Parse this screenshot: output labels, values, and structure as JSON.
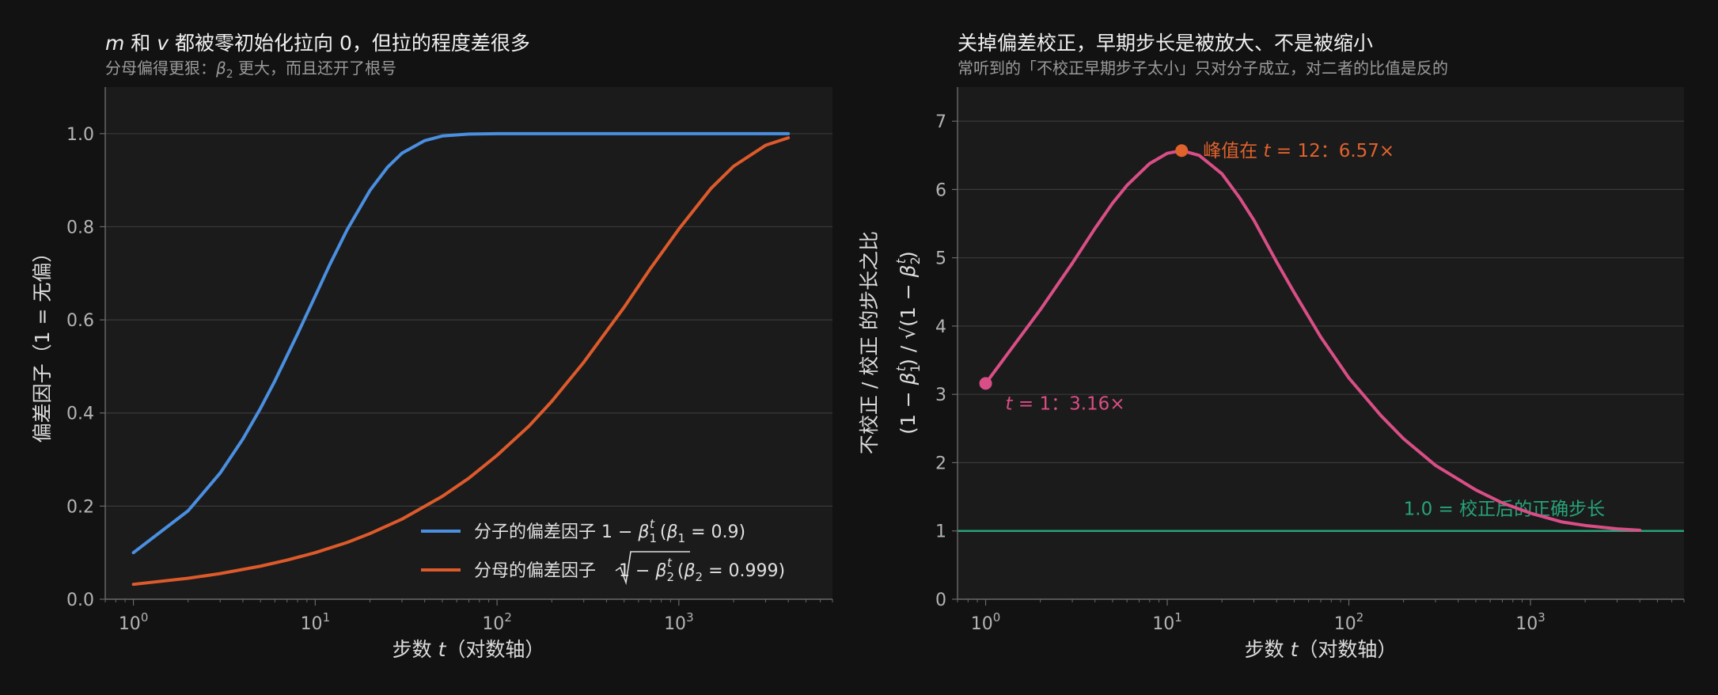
{
  "chart_data": [
    {
      "type": "line",
      "title": "m 和 v 都被零初始化拉向 0，但拉的程度差很多",
      "subtitle": "分母偏得更狠：β₂ 更大，而且还开了根号",
      "xlabel": "步数 t（对数轴）",
      "ylabel": "偏差因子（1 = 无偏）",
      "xscale": "log",
      "xlim": [
        0.7,
        7000
      ],
      "ylim": [
        0,
        1.1
      ],
      "xticks": [
        "10^0",
        "10^1",
        "10^2",
        "10^3"
      ],
      "yticks": [
        "0.0",
        "0.2",
        "0.4",
        "0.6",
        "0.8",
        "1.0"
      ],
      "grid": true,
      "legend_position": "lower-right",
      "series": [
        {
          "name": "分子的偏差因子  1 − β₁ᵗ   (β₁ = 0.9)",
          "color": "#4a8fe0",
          "x": [
            1,
            2,
            3,
            4,
            5,
            6,
            8,
            10,
            12,
            15,
            20,
            25,
            30,
            40,
            50,
            70,
            100,
            200,
            500,
            1000,
            4000
          ],
          "y": [
            0.1,
            0.19,
            0.271,
            0.344,
            0.41,
            0.469,
            0.57,
            0.651,
            0.718,
            0.794,
            0.878,
            0.928,
            0.958,
            0.985,
            0.995,
            0.999,
            1.0,
            1.0,
            1.0,
            1.0,
            1.0
          ]
        },
        {
          "name": "分母的偏差因子  √(1 − β₂ᵗ)   (β₂ = 0.999)",
          "color": "#dd5a2b",
          "x": [
            1,
            2,
            3,
            5,
            7,
            10,
            15,
            20,
            30,
            50,
            70,
            100,
            150,
            200,
            300,
            500,
            700,
            1000,
            1500,
            2000,
            3000,
            4000
          ],
          "y": [
            0.032,
            0.045,
            0.055,
            0.071,
            0.084,
            0.1,
            0.122,
            0.141,
            0.172,
            0.221,
            0.26,
            0.309,
            0.372,
            0.425,
            0.509,
            0.627,
            0.711,
            0.795,
            0.882,
            0.93,
            0.975,
            0.991
          ]
        }
      ]
    },
    {
      "type": "line",
      "title": "关掉偏差校正，早期步长是被放大、不是被缩小",
      "subtitle": "常听到的「不校正早期步子太小」只对分子成立，对二者的比值是反的",
      "xlabel": "步数 t（对数轴）",
      "ylabel_line1": "不校正 / 校正 的步长之比",
      "ylabel_line2": "(1 − β₁ᵗ) / √(1 − β₂ᵗ)",
      "xscale": "log",
      "xlim": [
        0.7,
        7000
      ],
      "ylim": [
        0,
        7.5
      ],
      "xticks": [
        "10^0",
        "10^1",
        "10^2",
        "10^3"
      ],
      "yticks": [
        "0",
        "1",
        "2",
        "3",
        "4",
        "5",
        "6",
        "7"
      ],
      "grid": true,
      "series": [
        {
          "color": "#d94e86",
          "x": [
            1,
            2,
            3,
            4,
            5,
            6,
            8,
            10,
            12,
            15,
            20,
            25,
            30,
            40,
            50,
            70,
            100,
            150,
            200,
            300,
            500,
            700,
            1000,
            1500,
            2000,
            3000,
            4000
          ],
          "y": [
            3.16,
            4.24,
            4.92,
            5.43,
            5.8,
            6.06,
            6.38,
            6.53,
            6.57,
            6.5,
            6.23,
            5.88,
            5.55,
            4.94,
            4.49,
            3.84,
            3.24,
            2.69,
            2.35,
            1.96,
            1.6,
            1.41,
            1.26,
            1.13,
            1.08,
            1.03,
            1.01
          ]
        }
      ],
      "reference_line": {
        "y": 1.0,
        "label": "1.0 = 校正后的正确步长",
        "color": "#27a37a"
      },
      "annotations": [
        {
          "x": 1,
          "y": 3.16,
          "label": "t = 1：3.16×",
          "color": "#d94e86"
        },
        {
          "x": 12,
          "y": 6.57,
          "label": "峰值在 t = 12：6.57×",
          "color": "#e0622d"
        }
      ]
    }
  ],
  "text": {
    "p1_title_var1": "m",
    "p1_title_mid": " 和 ",
    "p1_title_var2": "v",
    "p1_title_rest": " 都被零初始化拉向 0，但拉的程度差很多",
    "p1_sub_a": "分母偏得更狠：",
    "p1_sub_beta": "β",
    "p1_sub_sub": "2",
    "p1_sub_b": " 更大，而且还开了根号",
    "p1_xlab_a": "步数 ",
    "p1_xlab_t": "t",
    "p1_xlab_b": "（对数轴）",
    "p1_ylab": "偏差因子（1 = 无偏）",
    "leg1_a": "分子的偏差因子  1 − ",
    "leg1_beta": "β",
    "leg1_sub": "1",
    "leg1_sup": "t",
    "leg1_b": "   (",
    "leg1_beta2": "β",
    "leg1_sub2": "1",
    "leg1_c": " = 0.9)",
    "leg2_a": "分母的偏差因子  ",
    "leg2_rad": "1 − ",
    "leg2_beta": "β",
    "leg2_sub": "2",
    "leg2_sup": "t",
    "leg2_b": "   (",
    "leg2_beta2": "β",
    "leg2_sub2": "2",
    "leg2_c": " = 0.999)",
    "p2_title": "关掉偏差校正，早期步长是被放大、不是被缩小",
    "p2_sub": "常听到的「不校正早期步子太小」只对分子成立，对二者的比值是反的",
    "p2_xlab_a": "步数 ",
    "p2_xlab_t": "t",
    "p2_xlab_b": "（对数轴）",
    "p2_ylab1": "不校正 / 校正 的步长之比",
    "p2_ylab2_a": "(1 − ",
    "p2_ylab2_beta": "β",
    "p2_ylab2_sub": "1",
    "p2_ylab2_sup": "t",
    "p2_ylab2_b": ") / √(1 − ",
    "p2_ylab2_beta2": "β",
    "p2_ylab2_sub2": "2",
    "p2_ylab2_sup2": "t",
    "p2_ylab2_c": ")",
    "ann_t1_t": "t",
    "ann_t1_rest": " = 1：3.16×",
    "ann_peak_a": "峰值在 ",
    "ann_peak_t": "t",
    "ann_peak_b": " = 12：6.57×",
    "ref_label": "1.0 = 校正后的正确步长",
    "xtick_base": "10",
    "xtick_exps": [
      "0",
      "1",
      "2",
      "3"
    ]
  },
  "colors": {
    "bg": "#121212",
    "panel": "#1b1b1b",
    "grid": "#3a3a3a",
    "axis": "#6a6a6a"
  }
}
